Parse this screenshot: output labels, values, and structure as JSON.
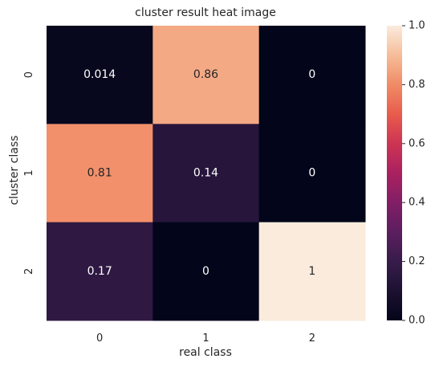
{
  "chart_data": {
    "type": "heatmap",
    "title": "cluster result heat image",
    "xlabel": "real class",
    "ylabel": "cluster class",
    "x_categories": [
      "0",
      "1",
      "2"
    ],
    "y_categories": [
      "0",
      "1",
      "2"
    ],
    "values": [
      [
        0.014,
        0.86,
        0
      ],
      [
        0.81,
        0.14,
        0
      ],
      [
        0.17,
        0,
        1
      ]
    ],
    "cell_labels": [
      [
        "0.014",
        "0.86",
        "0"
      ],
      [
        "0.81",
        "0.14",
        "0"
      ],
      [
        "0.17",
        "0",
        "1"
      ]
    ],
    "colorbar": {
      "range": [
        0,
        1
      ],
      "ticks": [
        "0.0",
        "0.2",
        "0.4",
        "0.6",
        "0.8",
        "1.0"
      ]
    },
    "colormap": "rocket",
    "colors": {
      "text_light": "#ffffff",
      "text_dark": "#262626"
    }
  }
}
